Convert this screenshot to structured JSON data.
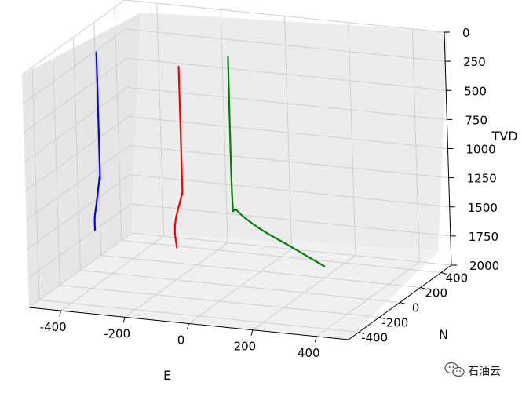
{
  "chart_data": {
    "type": "line",
    "subtype": "3d-well-trajectories",
    "title": "",
    "xlabel": "E",
    "ylabel": "N",
    "zlabel": "TVD",
    "xlim": [
      -500,
      500
    ],
    "ylim": [
      -500,
      500
    ],
    "zlim": [
      0,
      2000
    ],
    "z_inverted": true,
    "grid": true,
    "x_ticks": [
      "-400",
      "-200",
      "0",
      "200",
      "400"
    ],
    "y_ticks": [
      "-400",
      "-200",
      "0",
      "200",
      "400"
    ],
    "z_ticks": [
      "0",
      "250",
      "500",
      "750",
      "1000",
      "1250",
      "1500",
      "1750",
      "2000"
    ],
    "legend": "none",
    "series": [
      {
        "color": "#0000ff",
        "points": [
          {
            "E": -380,
            "N": -150,
            "TVD": 0
          },
          {
            "E": -380,
            "N": -150,
            "TVD": 1000
          },
          {
            "E": -385,
            "N": -140,
            "TVD": 1080
          },
          {
            "E": -400,
            "N": -110,
            "TVD": 1200
          },
          {
            "E": -430,
            "N": -40,
            "TVD": 1380
          },
          {
            "E": -470,
            "N": 60,
            "TVD": 1580
          },
          {
            "E": -500,
            "N": 150,
            "TVD": 1750
          }
        ]
      },
      {
        "color": "#ff0000",
        "points": [
          {
            "E": -100,
            "N": -220,
            "TVD": 0
          },
          {
            "E": -100,
            "N": -220,
            "TVD": 1000
          },
          {
            "E": -105,
            "N": -210,
            "TVD": 1100
          },
          {
            "E": -130,
            "N": -170,
            "TVD": 1250
          },
          {
            "E": -160,
            "N": -110,
            "TVD": 1400
          },
          {
            "E": -180,
            "N": -60,
            "TVD": 1550
          },
          {
            "E": -185,
            "N": -30,
            "TVD": 1700
          }
        ]
      },
      {
        "color": "#008000",
        "points": [
          {
            "E": 0,
            "N": -50,
            "TVD": 0
          },
          {
            "E": 0,
            "N": -50,
            "TVD": 1200
          },
          {
            "E": 10,
            "N": -40,
            "TVD": 1320
          },
          {
            "E": 60,
            "N": 20,
            "TVD": 1500
          },
          {
            "E": 130,
            "N": 110,
            "TVD": 1700
          },
          {
            "E": 200,
            "N": 200,
            "TVD": 1900
          }
        ]
      }
    ]
  },
  "watermark": {
    "text": "石油云",
    "icon": "wechat-icon"
  }
}
